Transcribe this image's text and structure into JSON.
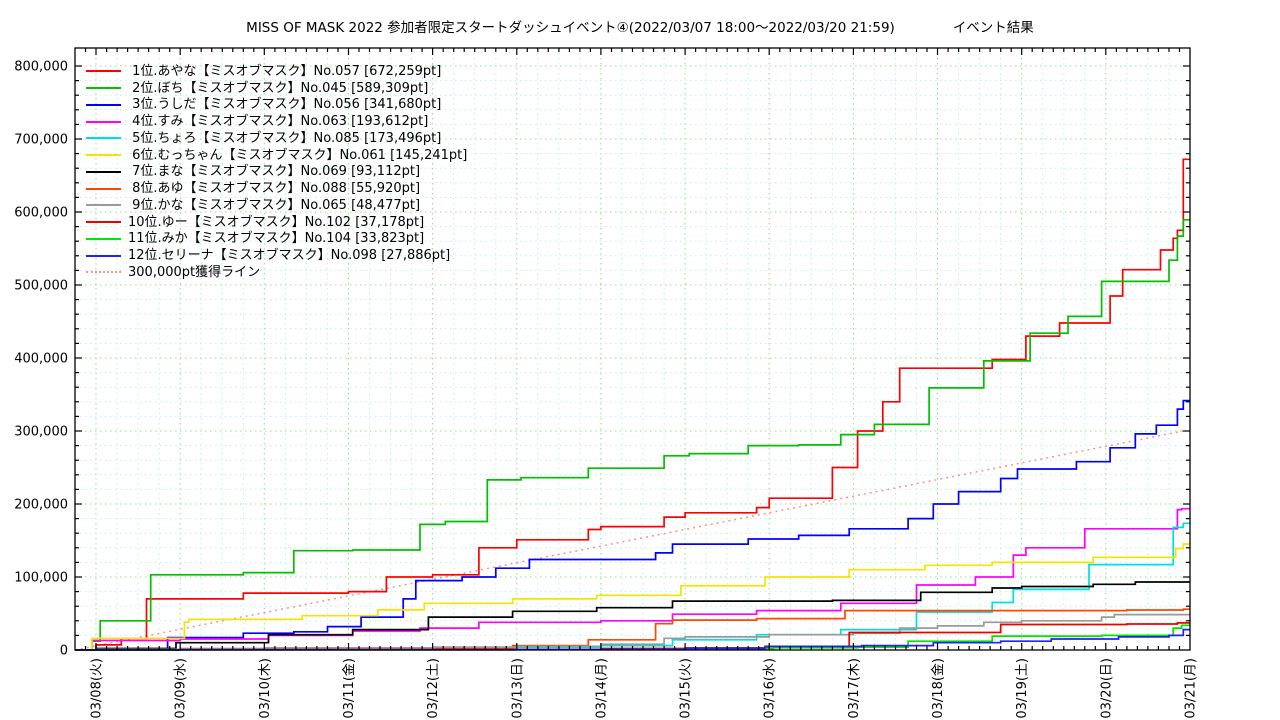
{
  "title": {
    "main": "MISS OF MASK 2022 参加者限定スタートダッシュイベント④(2022/03/07 18:00～2022/03/20 21:59)",
    "right": "イベント結果"
  },
  "chart_data": {
    "type": "line",
    "style": "steps",
    "title": "MISS OF MASK 2022 参加者限定スタートダッシュイベント④(2022/03/07 18:00～2022/03/20 21:59) イベント結果",
    "x_axis": {
      "label": "",
      "tick_labels": [
        "03/08(火)",
        "03/09(水)",
        "03/10(木)",
        "03/11(金)",
        "03/12(土)",
        "03/13(日)",
        "03/14(月)",
        "03/15(火)",
        "03/16(水)",
        "03/17(木)",
        "03/18(金)",
        "03/19(土)",
        "03/20(日)",
        "03/21(月)"
      ],
      "t_first_tick_days": 0.25,
      "t_max_days": 13.25,
      "major_gridline_every_days": 1,
      "minor_gridline_every_days": 0.25,
      "minor_tick_every_days": 0.125,
      "note": "t measured in days since 2022/03/07 18:00"
    },
    "y_axis": {
      "label": "",
      "min": 0,
      "max_labeled": 800000,
      "major_tick": 100000,
      "minor_tick": 20000,
      "tick_labels": [
        "0",
        "100,000",
        "200,000",
        "300,000",
        "400,000",
        "500,000",
        "600,000",
        "700,000",
        "800,000"
      ]
    },
    "grid": {
      "major_color": "#8ce08c",
      "minor_color": "#bdeef0",
      "style": "dotted"
    },
    "legend_position": "top-left",
    "reference_line": {
      "label": "300,000pt獲得ライン",
      "color": "#ff8e8e",
      "style": "dotted",
      "points": [
        [
          0,
          0
        ],
        [
          13.17,
          300000
        ]
      ]
    },
    "series": [
      {
        "rank": 1,
        "name": "あやな",
        "group": "ミスオブマスク",
        "entry_no": "No.057",
        "final_pt": 672259,
        "color": "#ff0000",
        "label": " 1位.あやな【ミスオブマスク】No.057 [672,259pt]",
        "points": [
          [
            0,
            0
          ],
          [
            0.25,
            7000
          ],
          [
            0.55,
            16000
          ],
          [
            0.85,
            70000
          ],
          [
            2,
            78000
          ],
          [
            3.25,
            80000
          ],
          [
            3.7,
            100000
          ],
          [
            4.25,
            103000
          ],
          [
            4.8,
            140000
          ],
          [
            5.25,
            151000
          ],
          [
            6.1,
            165000
          ],
          [
            6.25,
            169000
          ],
          [
            7,
            182000
          ],
          [
            7.25,
            188000
          ],
          [
            8.1,
            195000
          ],
          [
            8.25,
            208000
          ],
          [
            9,
            250000
          ],
          [
            9.3,
            300000
          ],
          [
            9.6,
            340000
          ],
          [
            9.8,
            386000
          ],
          [
            10.9,
            398000
          ],
          [
            11.3,
            430000
          ],
          [
            11.7,
            448000
          ],
          [
            12.3,
            485000
          ],
          [
            12.45,
            521000
          ],
          [
            12.9,
            548000
          ],
          [
            13.05,
            564000
          ],
          [
            13.1,
            575000
          ],
          [
            13.17,
            672259
          ]
        ]
      },
      {
        "rank": 2,
        "name": "ぼち",
        "group": "ミスオブマスク",
        "entry_no": "No.045",
        "final_pt": 589309,
        "color": "#00c000",
        "label": " 2位.ぼち【ミスオブマスク】No.045 [589,309pt]",
        "points": [
          [
            0,
            0
          ],
          [
            0.2,
            12000
          ],
          [
            0.3,
            40000
          ],
          [
            0.9,
            103000
          ],
          [
            2,
            106000
          ],
          [
            2.6,
            136000
          ],
          [
            3.3,
            137000
          ],
          [
            4.1,
            172000
          ],
          [
            4.4,
            176000
          ],
          [
            4.9,
            233000
          ],
          [
            5.3,
            236000
          ],
          [
            6.1,
            249000
          ],
          [
            7,
            266000
          ],
          [
            7.3,
            269000
          ],
          [
            8,
            280000
          ],
          [
            8.6,
            281000
          ],
          [
            9.1,
            295000
          ],
          [
            9.5,
            309000
          ],
          [
            10.15,
            359000
          ],
          [
            10.8,
            396000
          ],
          [
            11.35,
            434000
          ],
          [
            11.8,
            457000
          ],
          [
            12.2,
            505000
          ],
          [
            13,
            534000
          ],
          [
            13.1,
            567000
          ],
          [
            13.17,
            589309
          ]
        ]
      },
      {
        "rank": 3,
        "name": "うしだ",
        "group": "ミスオブマスク",
        "entry_no": "No.056",
        "final_pt": 341680,
        "color": "#0000ff",
        "label": " 3位.うしだ【ミスオブマスク】No.056 [341,680pt]",
        "points": [
          [
            0,
            0
          ],
          [
            0.25,
            1000
          ],
          [
            1.1,
            17000
          ],
          [
            2,
            23000
          ],
          [
            2.6,
            25000
          ],
          [
            3,
            32000
          ],
          [
            3.4,
            45000
          ],
          [
            3.9,
            70000
          ],
          [
            4.05,
            95000
          ],
          [
            4.6,
            100000
          ],
          [
            5,
            112000
          ],
          [
            5.4,
            124000
          ],
          [
            6.9,
            133000
          ],
          [
            7.1,
            145000
          ],
          [
            8,
            152000
          ],
          [
            8.6,
            157000
          ],
          [
            9.2,
            166000
          ],
          [
            9.9,
            180000
          ],
          [
            10.2,
            200000
          ],
          [
            10.5,
            217000
          ],
          [
            11,
            235000
          ],
          [
            11.2,
            248000
          ],
          [
            11.9,
            258000
          ],
          [
            12.3,
            277000
          ],
          [
            12.6,
            296000
          ],
          [
            12.85,
            308000
          ],
          [
            13.1,
            330000
          ],
          [
            13.17,
            341680
          ]
        ]
      },
      {
        "rank": 4,
        "name": "すみ",
        "group": "ミスオブマスク",
        "entry_no": "No.063",
        "final_pt": 193612,
        "color": "#ff00ff",
        "label": " 4位.すみ【ミスオブマスク】No.063 [193,612pt]",
        "points": [
          [
            0,
            0
          ],
          [
            0.2,
            13000
          ],
          [
            1.25,
            15000
          ],
          [
            2.3,
            20000
          ],
          [
            3.3,
            26000
          ],
          [
            4.1,
            30000
          ],
          [
            4.8,
            38000
          ],
          [
            6.25,
            40000
          ],
          [
            7.1,
            49000
          ],
          [
            8.1,
            54000
          ],
          [
            9.1,
            64000
          ],
          [
            10,
            89000
          ],
          [
            10.7,
            100000
          ],
          [
            11.15,
            130000
          ],
          [
            11.3,
            140000
          ],
          [
            12,
            166000
          ],
          [
            13.1,
            192000
          ],
          [
            13.15,
            193612
          ]
        ]
      },
      {
        "rank": 5,
        "name": "ちょろ",
        "group": "ミスオブマスク",
        "entry_no": "No.085",
        "final_pt": 173496,
        "color": "#00dede",
        "label": " 5位.ちょろ【ミスオブマスク】No.085 [173,496pt]",
        "points": [
          [
            0,
            0
          ],
          [
            0.25,
            500
          ],
          [
            1.25,
            1000
          ],
          [
            2.25,
            1500
          ],
          [
            3.25,
            2000
          ],
          [
            4.25,
            2500
          ],
          [
            5.25,
            4000
          ],
          [
            6.25,
            6000
          ],
          [
            7.1,
            14000
          ],
          [
            8.1,
            21000
          ],
          [
            9.1,
            28000
          ],
          [
            10,
            52000
          ],
          [
            10.9,
            65000
          ],
          [
            11.15,
            83000
          ],
          [
            12.05,
            117000
          ],
          [
            13.05,
            168000
          ],
          [
            13.17,
            173496
          ]
        ]
      },
      {
        "rank": 6,
        "name": "むっちゃん",
        "group": "ミスオブマスク",
        "entry_no": "No.061",
        "final_pt": 145241,
        "color": "#f5e400",
        "label": " 6位.むっちゃん【ミスオブマスク】No.061 [145,241pt]",
        "points": [
          [
            0,
            0
          ],
          [
            0.2,
            16000
          ],
          [
            1.3,
            38000
          ],
          [
            1.35,
            42000
          ],
          [
            2.7,
            47000
          ],
          [
            3.6,
            55000
          ],
          [
            4.15,
            64000
          ],
          [
            5.2,
            70000
          ],
          [
            6.2,
            75000
          ],
          [
            7.2,
            88000
          ],
          [
            8.2,
            100000
          ],
          [
            9.2,
            110000
          ],
          [
            10.1,
            116000
          ],
          [
            10.9,
            120000
          ],
          [
            12.1,
            127000
          ],
          [
            13.08,
            139000
          ],
          [
            13.17,
            145241
          ]
        ]
      },
      {
        "rank": 7,
        "name": "まな",
        "group": "ミスオブマスク",
        "entry_no": "No.069",
        "final_pt": 93112,
        "color": "#000000",
        "label": " 7位.まな【ミスオブマスク】No.069 [93,112pt]",
        "points": [
          [
            0,
            0
          ],
          [
            0.25,
            2000
          ],
          [
            1.2,
            10000
          ],
          [
            2.3,
            21000
          ],
          [
            3.3,
            28000
          ],
          [
            4.2,
            45000
          ],
          [
            5.2,
            53000
          ],
          [
            6.2,
            58000
          ],
          [
            7.1,
            67000
          ],
          [
            9,
            68000
          ],
          [
            10.05,
            79000
          ],
          [
            10.9,
            85000
          ],
          [
            11.25,
            87000
          ],
          [
            12.1,
            90000
          ],
          [
            12.6,
            93112
          ]
        ]
      },
      {
        "rank": 8,
        "name": "あゆ",
        "group": "ミスオブマスク",
        "entry_no": "No.088",
        "final_pt": 55920,
        "color": "#ff4500",
        "label": " 8位.あゆ【ミスオブマスク】No.088 [55,920pt]",
        "points": [
          [
            0,
            0
          ],
          [
            0.25,
            300
          ],
          [
            1.25,
            600
          ],
          [
            3.25,
            1000
          ],
          [
            4.3,
            2000
          ],
          [
            5.2,
            6000
          ],
          [
            6.1,
            14000
          ],
          [
            6.9,
            36000
          ],
          [
            7.1,
            41000
          ],
          [
            8.1,
            43000
          ],
          [
            9.15,
            54000
          ],
          [
            12.5,
            54800
          ],
          [
            13.17,
            55920
          ]
        ]
      },
      {
        "rank": 9,
        "name": "かな",
        "group": "ミスオブマスク",
        "entry_no": "No.065",
        "final_pt": 48477,
        "color": "#9a9a9a",
        "label": " 9位.かな【ミスオブマスク】No.065 [48,477pt]",
        "points": [
          [
            0,
            0
          ],
          [
            0.25,
            1000
          ],
          [
            1.25,
            2000
          ],
          [
            2.25,
            3000
          ],
          [
            4.25,
            4000
          ],
          [
            5.25,
            5000
          ],
          [
            6.25,
            8000
          ],
          [
            7,
            16000
          ],
          [
            7.25,
            18000
          ],
          [
            8.25,
            21000
          ],
          [
            9.25,
            23000
          ],
          [
            9.8,
            30000
          ],
          [
            10.25,
            33000
          ],
          [
            10.8,
            38000
          ],
          [
            11.25,
            40000
          ],
          [
            12.2,
            45000
          ],
          [
            12.35,
            48477
          ]
        ]
      },
      {
        "rank": 10,
        "name": "ゆー",
        "group": "ミスオブマスク",
        "entry_no": "No.102",
        "final_pt": 37178,
        "color": "#ee0000",
        "label": "10位.ゆー【ミスオブマスク】No.102 [37,178pt]",
        "points": [
          [
            0,
            0
          ],
          [
            1.25,
            500
          ],
          [
            4.25,
            1000
          ],
          [
            6.25,
            2000
          ],
          [
            7.25,
            3000
          ],
          [
            8.25,
            5000
          ],
          [
            9.2,
            24000
          ],
          [
            11,
            35000
          ],
          [
            12.5,
            35600
          ],
          [
            13.1,
            37178
          ]
        ]
      },
      {
        "rank": 11,
        "name": "みか",
        "group": "ミスオブマスク",
        "entry_no": "No.104",
        "final_pt": 33823,
        "color": "#00e600",
        "label": "11位.みか【ミスオブマスク】No.104 [33,823pt]",
        "points": [
          [
            0,
            0
          ],
          [
            1.25,
            300
          ],
          [
            5.25,
            1000
          ],
          [
            7.25,
            2000
          ],
          [
            8.3,
            3000
          ],
          [
            9.3,
            4000
          ],
          [
            9.9,
            12000
          ],
          [
            10.9,
            19000
          ],
          [
            12.2,
            20000
          ],
          [
            13.05,
            30000
          ],
          [
            13.15,
            33823
          ]
        ]
      },
      {
        "rank": 12,
        "name": "セリーナ",
        "group": "ミスオブマスク",
        "entry_no": "No.098",
        "final_pt": 27886,
        "color": "#2020ff",
        "label": "12位.セリーナ【ミスオブマスク】No.098 [27,886pt]",
        "points": [
          [
            0,
            0
          ],
          [
            1.25,
            300
          ],
          [
            5.25,
            1000
          ],
          [
            7.25,
            2000
          ],
          [
            8.2,
            5000
          ],
          [
            9.35,
            6000
          ],
          [
            10.2,
            10000
          ],
          [
            11,
            12000
          ],
          [
            11.6,
            15000
          ],
          [
            12.4,
            18000
          ],
          [
            13,
            20000
          ],
          [
            13.17,
            27886
          ]
        ]
      }
    ]
  }
}
